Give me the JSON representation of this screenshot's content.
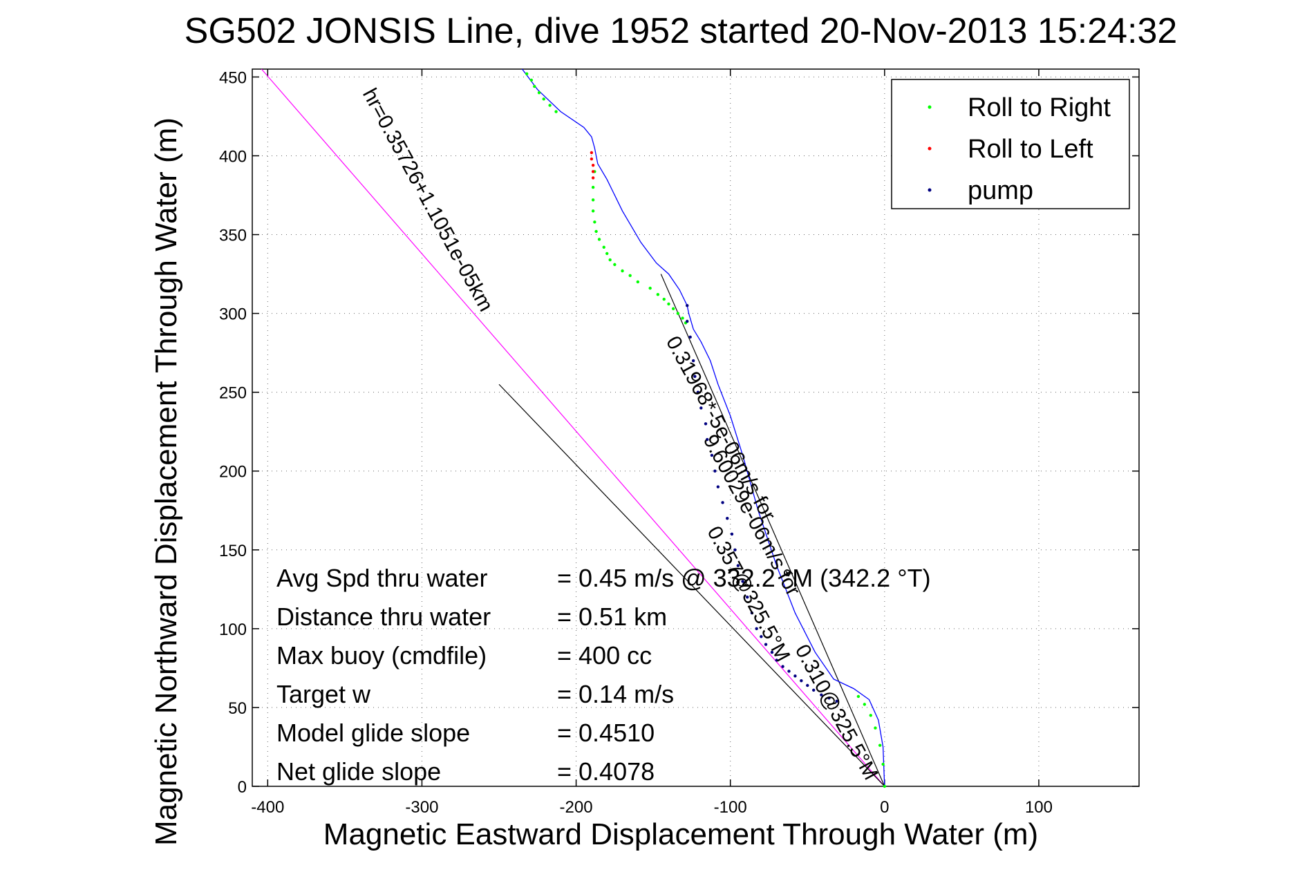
{
  "chart_data": {
    "type": "line",
    "title": "SG502 JONSIS Line, dive 1952 started 20-Nov-2013 15:24:32",
    "xlabel": "Magnetic Eastward Displacement Through Water (m)",
    "ylabel": "Magnetic Northward Displacement Through Water (m)",
    "xlim": [
      -410,
      165
    ],
    "ylim": [
      0,
      455
    ],
    "x_ticks": [
      -400,
      -300,
      -200,
      -100,
      0,
      100
    ],
    "y_ticks": [
      0,
      50,
      100,
      150,
      200,
      250,
      300,
      350,
      400,
      450
    ],
    "grid": true,
    "legend_position": "top-right",
    "legend": [
      {
        "label": "Roll to Right",
        "color": "#00ff00"
      },
      {
        "label": "Roll to Left",
        "color": "#ff0000"
      },
      {
        "label": "pump",
        "color": "#000080"
      }
    ],
    "track": {
      "color": "#0000ff",
      "x": [
        0,
        -1,
        -4,
        -10,
        -20,
        -33,
        -45,
        -58,
        -70,
        -82,
        -92,
        -100,
        -108,
        -113,
        -119,
        -124,
        -127,
        -128,
        -133,
        -140,
        -148,
        -158,
        -170,
        -180,
        -186,
        -188,
        -190,
        -195,
        -210,
        -225,
        -235
      ],
      "y": [
        0,
        25,
        42,
        55,
        62,
        68,
        85,
        110,
        140,
        175,
        210,
        235,
        255,
        270,
        282,
        290,
        300,
        305,
        315,
        325,
        332,
        345,
        365,
        385,
        395,
        405,
        412,
        418,
        428,
        442,
        455
      ]
    },
    "roll_right": {
      "x": [
        0,
        -1,
        -3,
        -6,
        -9,
        -13,
        -17,
        -188,
        -189,
        -189,
        -189,
        -188,
        -187,
        -185,
        -182,
        -180,
        -178,
        -175,
        -170,
        -165,
        -160,
        -152,
        -147,
        -143,
        -140,
        -137,
        -134,
        -131,
        -129,
        -213,
        -217,
        -221,
        -224,
        -227,
        -229,
        -232
      ],
      "y": [
        0,
        14,
        26,
        37,
        45,
        52,
        57,
        390,
        380,
        372,
        365,
        358,
        352,
        347,
        342,
        338,
        334,
        331,
        327,
        324,
        320,
        316,
        312,
        309,
        306,
        303,
        300,
        297,
        294,
        428,
        432,
        436,
        440,
        444,
        448,
        452
      ]
    },
    "roll_left": {
      "x": [
        -190,
        -190,
        -189,
        -189,
        -189
      ],
      "y": [
        402,
        398,
        394,
        390,
        386
      ]
    },
    "pump": {
      "x": [
        -128,
        -128,
        -126,
        -124,
        -123,
        -121,
        -119,
        -116,
        -115,
        -112,
        -110,
        -108,
        -105,
        -102,
        -99,
        -97,
        -95,
        -92,
        -89,
        -86,
        -83,
        -80,
        -77,
        -73,
        -70,
        -66,
        -62,
        -58,
        -54,
        -50,
        -46,
        -41,
        -36,
        -31
      ],
      "y": [
        305,
        295,
        285,
        270,
        260,
        250,
        240,
        230,
        220,
        210,
        200,
        190,
        180,
        170,
        160,
        150,
        140,
        130,
        120,
        110,
        100,
        95,
        90,
        85,
        80,
        76,
        73,
        70,
        67,
        64,
        61,
        58,
        56,
        54
      ]
    },
    "reference_lines": [
      {
        "label": "0.357@",
        "x": [
          0,
          -404
        ],
        "y": [
          0,
          455
        ],
        "color": "#ff00ff"
      },
      {
        "label": "0.310@",
        "x": [
          0,
          -145
        ],
        "y": [
          0,
          325
        ],
        "color": "#000000"
      },
      {
        "label": "",
        "x": [
          0,
          -250
        ],
        "y": [
          0,
          255
        ],
        "color": "#000000"
      }
    ],
    "rotated_annotations": [
      {
        "text": "0.357@325.5°M",
        "x": -92,
        "y": 120,
        "rotation": 61.5
      },
      {
        "text": "0.310@325.5°M",
        "x": -35,
        "y": 45,
        "rotation": 61.5
      },
      {
        "text": "hr=0.35726+1.1051e-05km",
        "x": -300,
        "y": 370,
        "rotation": 61.5
      },
      {
        "text": "0.31968*-5e-06m/s for",
        "x": -110,
        "y": 225,
        "rotation": 61.5
      },
      {
        "text": "9.60029e-06m/s for",
        "x": -90,
        "y": 170,
        "rotation": 61.5
      }
    ],
    "stats": [
      {
        "label": "Avg Spd thru water",
        "value": "=  0.45 m/s @ 332.2 °M (342.2 °T)"
      },
      {
        "label": "Distance thru water",
        "value": "=  0.51 km"
      },
      {
        "label": "Max buoy (cmdfile)",
        "value": "= 400 cc"
      },
      {
        "label": "Target w",
        "value": "= 0.14 m/s"
      },
      {
        "label": "Model glide slope",
        "value": "= 0.4510"
      },
      {
        "label": "Net glide slope",
        "value": "= 0.4078"
      }
    ]
  }
}
